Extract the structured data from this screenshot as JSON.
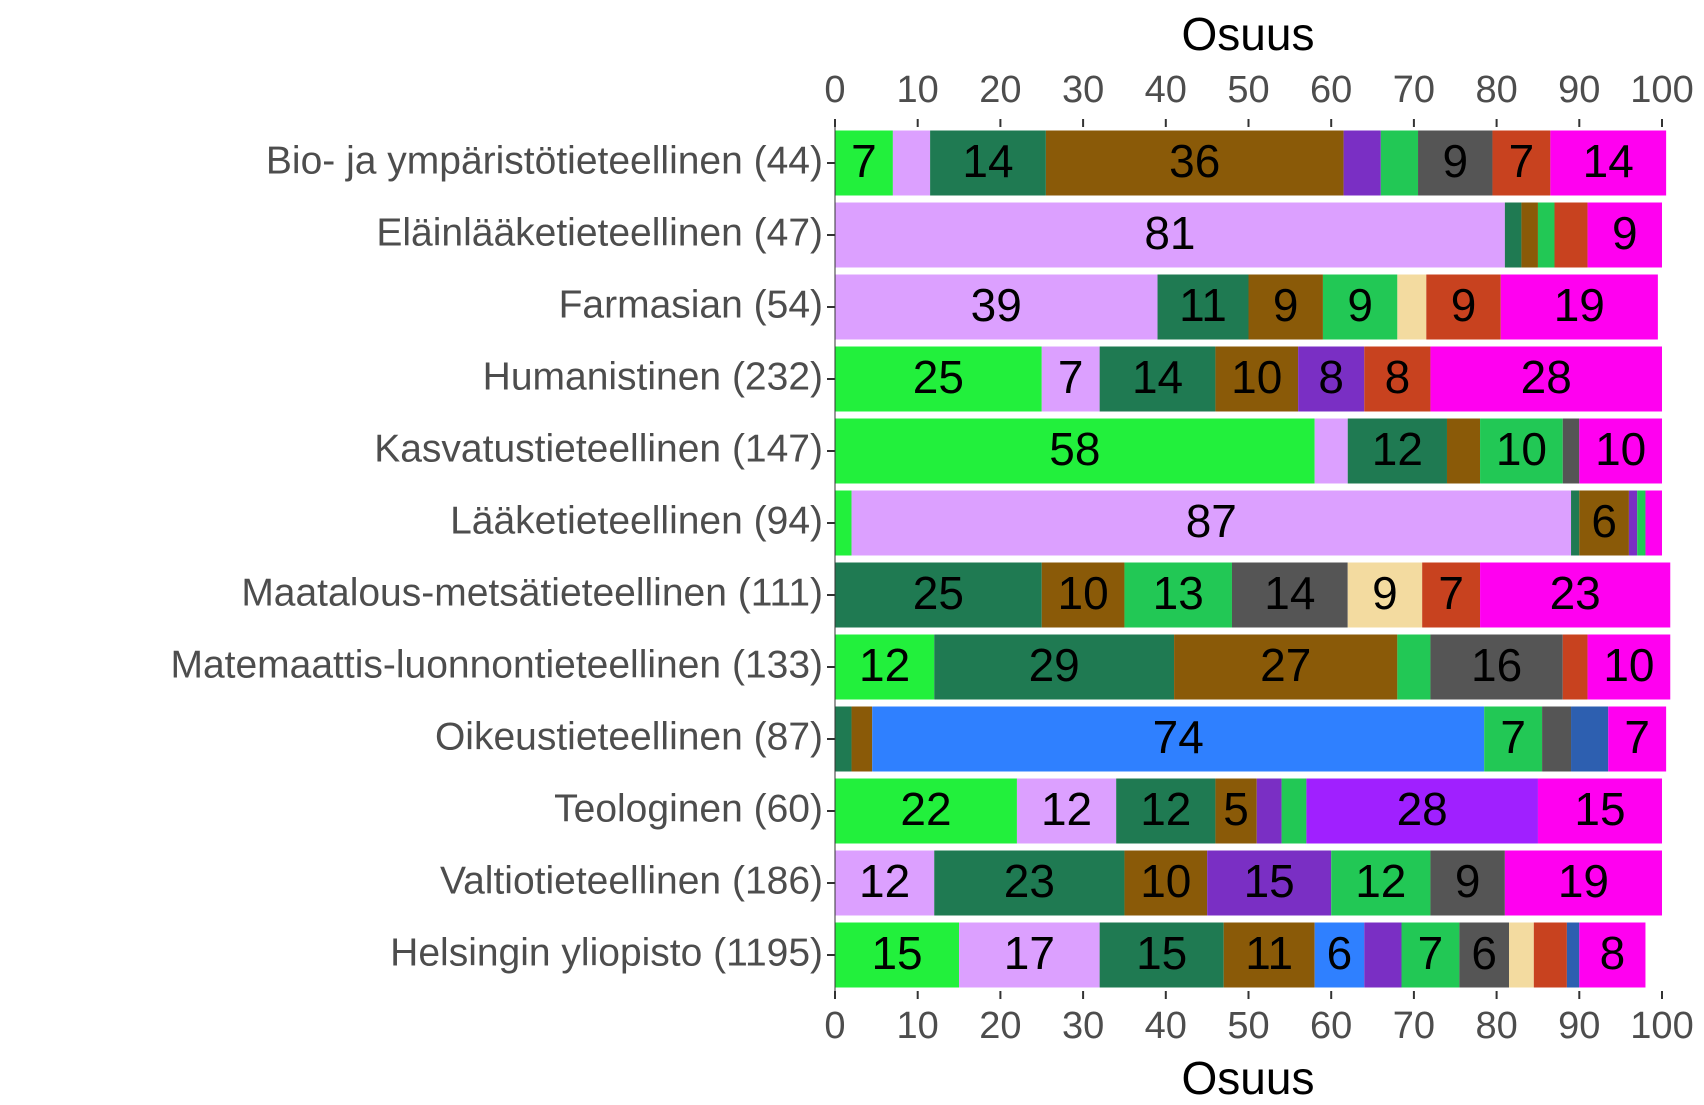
{
  "chart_data": {
    "type": "stacked_barh",
    "xlabel": "Osuus",
    "categories": [
      "Bio- ja ympäristötieteellinen (44)",
      "Eläinlääketieteellinen (47)",
      "Farmasian (54)",
      "Humanistinen (232)",
      "Kasvatustieteellinen (147)",
      "Lääketieteellinen (94)",
      "Maatalous-metsätieteellinen (111)",
      "Matemaattis-luonnontieteellinen (133)",
      "Oikeustieteellinen (87)",
      "Teologinen (60)",
      "Valtiotieteellinen (186)",
      "Helsingin yliopisto (1195)"
    ],
    "series": [
      {
        "color": "#22f03c",
        "values": [
          7,
          null,
          null,
          25,
          58,
          2,
          null,
          12,
          null,
          22,
          null,
          15
        ]
      },
      {
        "color": "#dca0ff",
        "values": [
          4.5,
          81,
          39,
          7,
          4,
          87,
          null,
          null,
          null,
          12,
          12,
          17
        ]
      },
      {
        "color": "#1f7a52",
        "values": [
          14,
          2,
          11,
          14,
          12,
          1,
          25,
          29,
          2,
          12,
          23,
          15
        ]
      },
      {
        "color": "#8a5a08",
        "values": [
          36,
          2,
          9,
          10,
          4,
          6,
          10,
          27,
          2.5,
          5,
          10,
          11
        ]
      },
      {
        "color": "#2f80ff",
        "values": [
          null,
          null,
          null,
          null,
          null,
          null,
          null,
          null,
          74,
          null,
          null,
          6
        ]
      },
      {
        "color": "#7a2fc4",
        "values": [
          4.5,
          null,
          null,
          8,
          null,
          1,
          null,
          null,
          null,
          3,
          15,
          4.5
        ]
      },
      {
        "color": "#22c855",
        "values": [
          4.5,
          2,
          9,
          null,
          10,
          1,
          13,
          4,
          7,
          3,
          12,
          7
        ]
      },
      {
        "color": "#a020ff",
        "values": [
          null,
          null,
          null,
          null,
          null,
          null,
          null,
          null,
          null,
          28,
          null,
          null
        ]
      },
      {
        "color": "#555555",
        "values": [
          9,
          null,
          null,
          null,
          2,
          null,
          14,
          16,
          3.5,
          null,
          9,
          6
        ]
      },
      {
        "color": "#f3dba0",
        "values": [
          null,
          null,
          3.5,
          null,
          null,
          null,
          9,
          null,
          null,
          null,
          null,
          3
        ]
      },
      {
        "color": "#c8421f",
        "values": [
          7,
          4,
          9,
          8,
          null,
          null,
          7,
          3,
          null,
          null,
          null,
          4
        ]
      },
      {
        "color": "#2d5fb0",
        "values": [
          null,
          null,
          null,
          null,
          null,
          null,
          null,
          null,
          4.5,
          null,
          null,
          1.5
        ]
      },
      {
        "color": "#ff00f0",
        "values": [
          14,
          9,
          19,
          28,
          10,
          2,
          23,
          10,
          7,
          15,
          19,
          8
        ]
      }
    ],
    "xlim": [
      0,
      100
    ],
    "xticks": [
      0,
      10,
      20,
      30,
      40,
      50,
      60,
      70,
      80,
      90,
      100
    ]
  }
}
